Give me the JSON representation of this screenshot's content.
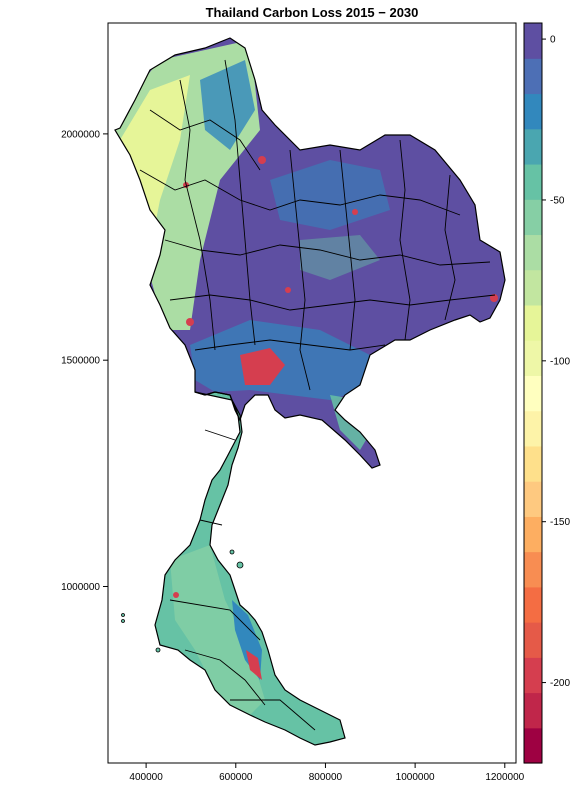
{
  "title": "Thailand Carbon Loss 2015 − 2030",
  "map": {
    "x_axis_ticks": [
      {
        "value": 400000,
        "label": "400000"
      },
      {
        "value": 600000,
        "label": "600000"
      },
      {
        "value": 800000,
        "label": "800000"
      },
      {
        "value": 1000000,
        "label": "1000000"
      },
      {
        "value": 1200000,
        "label": "1200000"
      }
    ],
    "y_axis_ticks": [
      {
        "value": 2000000,
        "label": "2000000"
      },
      {
        "value": 1500000,
        "label": "1500000"
      },
      {
        "value": 1000000,
        "label": "1000000"
      }
    ],
    "xlim": [
      315000,
      1225000
    ],
    "ylim": [
      610000,
      2245000
    ]
  },
  "legend": {
    "range": [
      -225,
      5
    ],
    "ticks": [
      {
        "value": 0,
        "label": "0"
      },
      {
        "value": -50,
        "label": "-50"
      },
      {
        "value": -100,
        "label": "-100"
      },
      {
        "value": -150,
        "label": "-150"
      },
      {
        "value": -200,
        "label": "-200"
      }
    ],
    "colors": [
      "#9e0142",
      "#c0264a",
      "#d53e4f",
      "#e55a48",
      "#f46d43",
      "#f88d52",
      "#fdae61",
      "#fec980",
      "#fee08b",
      "#fdf3a8",
      "#ffffbf",
      "#eef7a7",
      "#e6f598",
      "#c2e6a0",
      "#abdda4",
      "#86cfa5",
      "#66c2a5",
      "#4aa6b0",
      "#3288bd",
      "#4d6fb5",
      "#5e4fa2"
    ]
  }
}
